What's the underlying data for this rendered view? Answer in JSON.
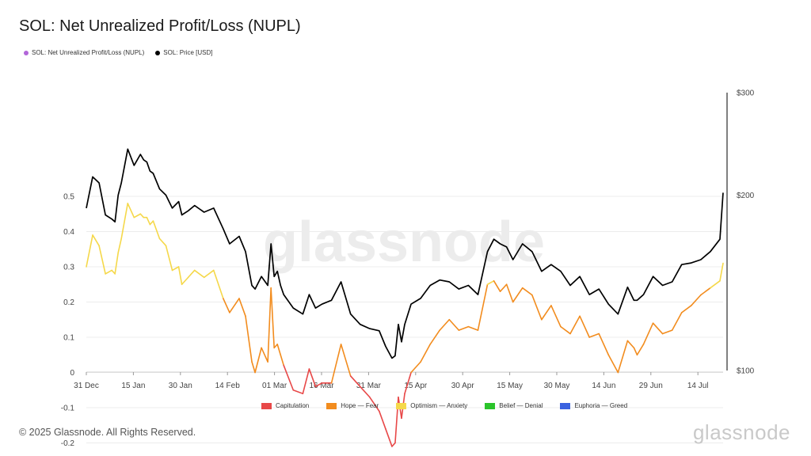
{
  "title": "SOL: Net Unrealized Profit/Loss (NUPL)",
  "copyright": "© 2025 Glassnode. All Rights Reserved.",
  "footer_logo": "glassnode",
  "watermark": "glassnode",
  "legend_top": [
    {
      "label": "SOL: Net Unrealized Profit/Loss (NUPL)",
      "color": "#b266d9"
    },
    {
      "label": "SOL: Price [USD]",
      "color": "#000000"
    }
  ],
  "legend_bottom": [
    {
      "label": "Capitulation",
      "color": "#e84848"
    },
    {
      "label": "Hope — Fear",
      "color": "#f28c1e"
    },
    {
      "label": "Optimism — Anxiety",
      "color": "#f5d84a"
    },
    {
      "label": "Belief — Denial",
      "color": "#2bc42b"
    },
    {
      "label": "Euphoria — Greed",
      "color": "#3a62e0"
    }
  ],
  "chart_data": {
    "type": "line",
    "x": [
      "2024-12-31",
      "2025-01-02",
      "2025-01-04",
      "2025-01-06",
      "2025-01-08",
      "2025-01-09",
      "2025-01-10",
      "2025-01-11",
      "2025-01-13",
      "2025-01-15",
      "2025-01-17",
      "2025-01-18",
      "2025-01-19",
      "2025-01-20",
      "2025-01-21",
      "2025-01-23",
      "2025-01-25",
      "2025-01-27",
      "2025-01-29",
      "2025-01-30",
      "2025-02-01",
      "2025-02-03",
      "2025-02-06",
      "2025-02-09",
      "2025-02-12",
      "2025-02-14",
      "2025-02-17",
      "2025-02-19",
      "2025-02-21",
      "2025-02-22",
      "2025-02-24",
      "2025-02-26",
      "2025-02-27",
      "2025-02-28",
      "2025-03-01",
      "2025-03-02",
      "2025-03-03",
      "2025-03-06",
      "2025-03-09",
      "2025-03-11",
      "2025-03-13",
      "2025-03-15",
      "2025-03-18",
      "2025-03-21",
      "2025-03-24",
      "2025-03-27",
      "2025-03-30",
      "2025-04-02",
      "2025-04-04",
      "2025-04-06",
      "2025-04-07",
      "2025-04-08",
      "2025-04-09",
      "2025-04-10",
      "2025-04-12",
      "2025-04-15",
      "2025-04-18",
      "2025-04-21",
      "2025-04-24",
      "2025-04-27",
      "2025-04-30",
      "2025-05-03",
      "2025-05-06",
      "2025-05-08",
      "2025-05-10",
      "2025-05-12",
      "2025-05-14",
      "2025-05-17",
      "2025-05-20",
      "2025-05-23",
      "2025-05-26",
      "2025-05-29",
      "2025-06-01",
      "2025-06-04",
      "2025-06-07",
      "2025-06-10",
      "2025-06-13",
      "2025-06-16",
      "2025-06-19",
      "2025-06-21",
      "2025-06-22",
      "2025-06-24",
      "2025-06-27",
      "2025-06-30",
      "2025-07-03",
      "2025-07-06",
      "2025-07-09",
      "2025-07-12",
      "2025-07-15",
      "2025-07-18",
      "2025-07-19"
    ],
    "series": [
      {
        "name": "SOL: Net Unrealized Profit/Loss (NUPL)",
        "values": [
          0.3,
          0.39,
          0.36,
          0.28,
          0.29,
          0.28,
          0.34,
          0.38,
          0.48,
          0.44,
          0.45,
          0.44,
          0.44,
          0.42,
          0.43,
          0.38,
          0.36,
          0.29,
          0.3,
          0.25,
          0.27,
          0.29,
          0.27,
          0.29,
          0.21,
          0.17,
          0.21,
          0.16,
          0.03,
          0.0,
          0.07,
          0.03,
          0.24,
          0.07,
          0.08,
          0.05,
          0.02,
          -0.05,
          -0.06,
          0.01,
          -0.04,
          -0.03,
          -0.03,
          0.08,
          -0.01,
          -0.04,
          -0.07,
          -0.11,
          -0.16,
          -0.21,
          -0.2,
          -0.07,
          -0.13,
          -0.06,
          0.0,
          0.03,
          0.08,
          0.12,
          0.15,
          0.12,
          0.13,
          0.12,
          0.25,
          0.26,
          0.23,
          0.25,
          0.2,
          0.24,
          0.22,
          0.15,
          0.19,
          0.13,
          0.11,
          0.16,
          0.1,
          0.11,
          0.05,
          0.0,
          0.09,
          0.07,
          0.05,
          0.08,
          0.14,
          0.11,
          0.12,
          0.17,
          0.19,
          0.22,
          0.24,
          0.26,
          0.31
        ]
      },
      {
        "name": "SOL: Price [USD]",
        "values": [
          190,
          215,
          210,
          185,
          182,
          180,
          200,
          210,
          240,
          225,
          235,
          230,
          228,
          220,
          218,
          205,
          200,
          190,
          195,
          185,
          188,
          192,
          187,
          190,
          175,
          165,
          170,
          160,
          140,
          138,
          145,
          140,
          165,
          145,
          148,
          140,
          135,
          128,
          125,
          135,
          128,
          130,
          132,
          142,
          125,
          120,
          118,
          117,
          110,
          105,
          106,
          120,
          112,
          120,
          130,
          133,
          140,
          143,
          142,
          138,
          140,
          135,
          160,
          168,
          165,
          163,
          155,
          165,
          160,
          148,
          152,
          148,
          140,
          145,
          135,
          138,
          130,
          125,
          139,
          132,
          132,
          135,
          145,
          140,
          142,
          152,
          153,
          155,
          160,
          168,
          202
        ]
      }
    ],
    "yaxis_left": {
      "ticks": [
        -0.2,
        -0.1,
        0,
        0.1,
        0.2,
        0.3,
        0.4,
        0.5
      ],
      "range": [
        -0.25,
        0.5
      ]
    },
    "yaxis_right": {
      "ticks": [
        "$100",
        "$200",
        "$300"
      ],
      "scale": "log"
    },
    "x_ticks": [
      "31 Dec",
      "15 Jan",
      "30 Jan",
      "14 Feb",
      "01 Mar",
      "16 Mar",
      "31 Mar",
      "15 Apr",
      "30 Apr",
      "15 May",
      "30 May",
      "14 Jun",
      "29 Jun",
      "14 Jul"
    ],
    "zones": [
      {
        "name": "Capitulation",
        "max": 0
      },
      {
        "name": "Hope — Fear",
        "min": 0,
        "max": 0.25
      },
      {
        "name": "Optimism — Anxiety",
        "min": 0.25,
        "max": 0.5
      },
      {
        "name": "Belief — Denial",
        "min": 0.5,
        "max": 0.75
      },
      {
        "name": "Euphoria — Greed",
        "min": 0.75
      }
    ]
  }
}
